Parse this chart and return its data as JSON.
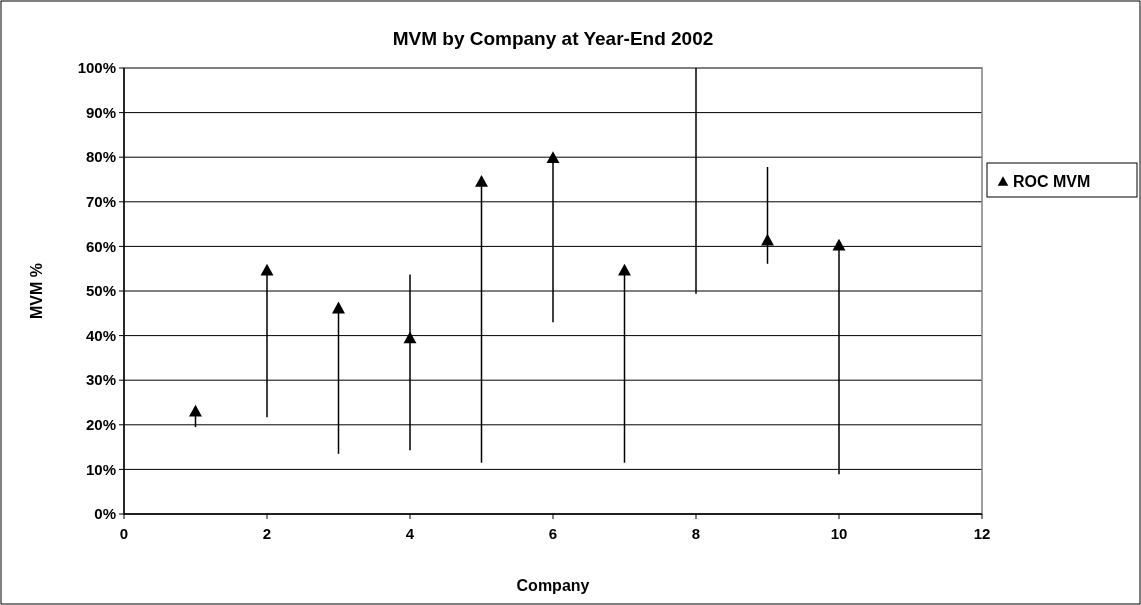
{
  "chart_data": {
    "type": "scatter",
    "title": "MVM by Company at Year-End 2002",
    "xlabel": "Company",
    "ylabel": "MVM %",
    "series": [
      {
        "name": "ROC MVM",
        "color": "#000000",
        "x": [
          1,
          2,
          3,
          4,
          5,
          6,
          7,
          9,
          10
        ],
        "values": [
          23.2,
          54.8,
          46.3,
          39.6,
          74.7,
          80.0,
          54.8,
          61.5,
          60.4
        ],
        "errors": [
          [
            19.5,
            23.2
          ],
          [
            21.7,
            54.8
          ],
          [
            13.5,
            46.3
          ],
          [
            14.3,
            53.7
          ],
          [
            11.5,
            74.7
          ],
          [
            43.0,
            80.0
          ],
          [
            11.5,
            54.8
          ],
          [
            56.1,
            77.8
          ],
          [
            8.9,
            60.4
          ]
        ]
      },
      {
        "type": "line",
        "color": "#000000",
        "marker": "none",
        "x": [
          8,
          8
        ],
        "values": [
          49.4,
          100
        ]
      }
    ],
    "xlim": [
      0,
      12
    ],
    "xticks": [
      0,
      2,
      4,
      6,
      8,
      10,
      12
    ],
    "ylim": [
      0,
      100
    ],
    "yticks": [
      {
        "value": 0,
        "label": "0%"
      },
      {
        "value": 10,
        "label": "10%"
      },
      {
        "value": 20,
        "label": "20%"
      },
      {
        "value": 30,
        "label": "30%"
      },
      {
        "value": 40,
        "label": "40%"
      },
      {
        "value": 50,
        "label": "50%"
      },
      {
        "value": 60,
        "label": "60%"
      },
      {
        "value": 70,
        "label": "70%"
      },
      {
        "value": 80,
        "label": "80%"
      },
      {
        "value": 90,
        "label": "90%"
      },
      {
        "value": 100,
        "label": "100%"
      }
    ],
    "grid": "y",
    "legend": "right",
    "marker": "triangle"
  }
}
